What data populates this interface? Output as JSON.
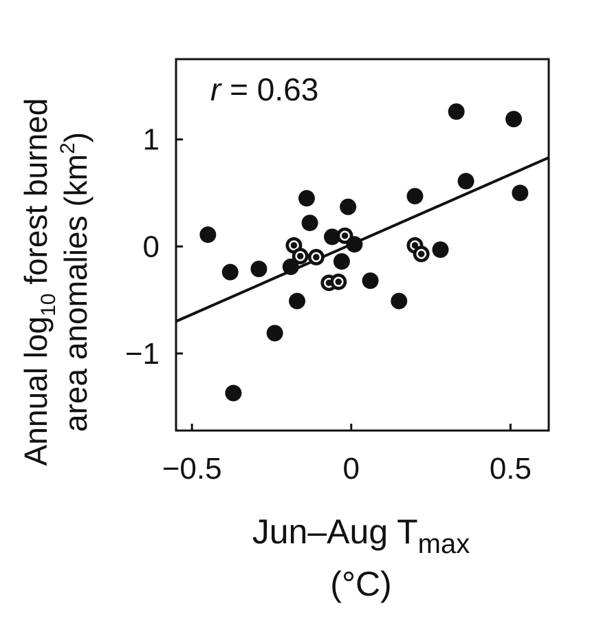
{
  "chart_data": {
    "type": "scatter",
    "annotation": {
      "var": "r",
      "eq": " = ",
      "val": "0.63"
    },
    "x_title": {
      "main": "Jun–Aug T",
      "sub": "max",
      "unit": "(°C)"
    },
    "y_title": {
      "line1_a": "Annual log",
      "line1_sub": "10",
      "line1_b": " forest burned",
      "line2_a": "area anomalies (km",
      "line2_sup": "2",
      "line2_b": ")"
    },
    "x_ticks": [
      {
        "value": -0.5,
        "label": "−0.5"
      },
      {
        "value": 0,
        "label": "0"
      },
      {
        "value": 0.5,
        "label": "0.5"
      }
    ],
    "y_ticks": [
      {
        "value": 1,
        "label": "1"
      },
      {
        "value": 0,
        "label": "0"
      },
      {
        "value": -1,
        "label": "−1"
      }
    ],
    "xlim": [
      -0.55,
      0.62
    ],
    "ylim": [
      -1.72,
      1.75
    ],
    "points": [
      {
        "x": -0.45,
        "y": 0.11,
        "style": "solid"
      },
      {
        "x": -0.38,
        "y": -0.24,
        "style": "solid"
      },
      {
        "x": -0.37,
        "y": -1.37,
        "style": "solid"
      },
      {
        "x": -0.29,
        "y": -0.21,
        "style": "solid"
      },
      {
        "x": -0.24,
        "y": -0.81,
        "style": "solid"
      },
      {
        "x": -0.19,
        "y": -0.19,
        "style": "solid"
      },
      {
        "x": -0.18,
        "y": 0.01,
        "style": "hollow"
      },
      {
        "x": -0.17,
        "y": -0.51,
        "style": "solid"
      },
      {
        "x": -0.16,
        "y": -0.09,
        "style": "hollow"
      },
      {
        "x": -0.14,
        "y": 0.45,
        "style": "solid"
      },
      {
        "x": -0.13,
        "y": 0.22,
        "style": "solid"
      },
      {
        "x": -0.11,
        "y": -0.1,
        "style": "hollow"
      },
      {
        "x": -0.07,
        "y": -0.34,
        "style": "hollow"
      },
      {
        "x": -0.06,
        "y": 0.09,
        "style": "solid"
      },
      {
        "x": -0.04,
        "y": -0.33,
        "style": "hollow"
      },
      {
        "x": -0.03,
        "y": -0.14,
        "style": "solid"
      },
      {
        "x": -0.02,
        "y": 0.1,
        "style": "hollow"
      },
      {
        "x": -0.01,
        "y": 0.37,
        "style": "solid"
      },
      {
        "x": 0.01,
        "y": 0.02,
        "style": "solid"
      },
      {
        "x": 0.06,
        "y": -0.32,
        "style": "solid"
      },
      {
        "x": 0.15,
        "y": -0.51,
        "style": "solid"
      },
      {
        "x": 0.2,
        "y": 0.47,
        "style": "solid"
      },
      {
        "x": 0.2,
        "y": 0.01,
        "style": "hollow"
      },
      {
        "x": 0.22,
        "y": -0.07,
        "style": "hollow"
      },
      {
        "x": 0.28,
        "y": -0.03,
        "style": "solid"
      },
      {
        "x": 0.33,
        "y": 1.26,
        "style": "solid"
      },
      {
        "x": 0.36,
        "y": 0.61,
        "style": "solid"
      },
      {
        "x": 0.51,
        "y": 1.19,
        "style": "solid"
      },
      {
        "x": 0.53,
        "y": 0.5,
        "style": "solid"
      }
    ],
    "fit_line": {
      "x": [
        -0.55,
        0.62
      ],
      "y": [
        -0.7,
        0.83
      ]
    },
    "grid": false,
    "colors": {
      "marker": "#111111",
      "line": "#111111",
      "axis": "#111111"
    }
  }
}
